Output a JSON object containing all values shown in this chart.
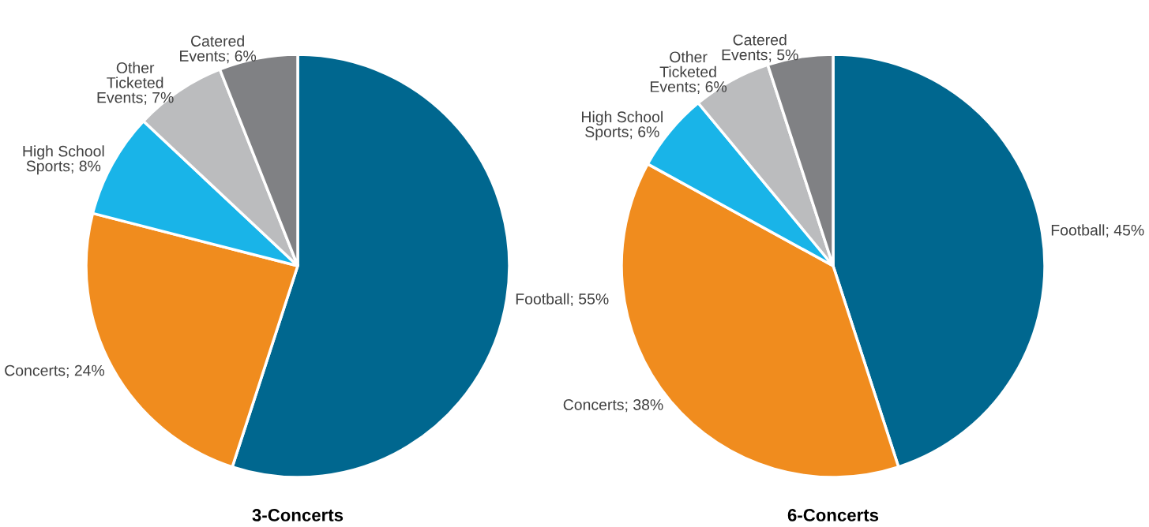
{
  "chart_data": [
    {
      "type": "pie",
      "title": "3-Concerts",
      "categories": [
        "Football",
        "Concerts",
        "High School Sports",
        "Other Ticketed Events",
        "Catered Events"
      ],
      "values": [
        55,
        24,
        8,
        7,
        6
      ],
      "value_labels": [
        "55%",
        "24%",
        "8%",
        "7%",
        "6%"
      ],
      "colors": [
        "#00678f",
        "#f08c1e",
        "#19b4e8",
        "#bbbcbe",
        "#808184"
      ],
      "legend": false
    },
    {
      "type": "pie",
      "title": "6-Concerts",
      "categories": [
        "Football",
        "Concerts",
        "High School Sports",
        "Other Ticketed Events",
        "Catered Events"
      ],
      "values": [
        45,
        38,
        6,
        6,
        5
      ],
      "value_labels": [
        "45%",
        "38%",
        "6%",
        "6%",
        "5%"
      ],
      "colors": [
        "#00678f",
        "#f08c1e",
        "#19b4e8",
        "#bbbcbe",
        "#808184"
      ],
      "legend": false
    }
  ]
}
